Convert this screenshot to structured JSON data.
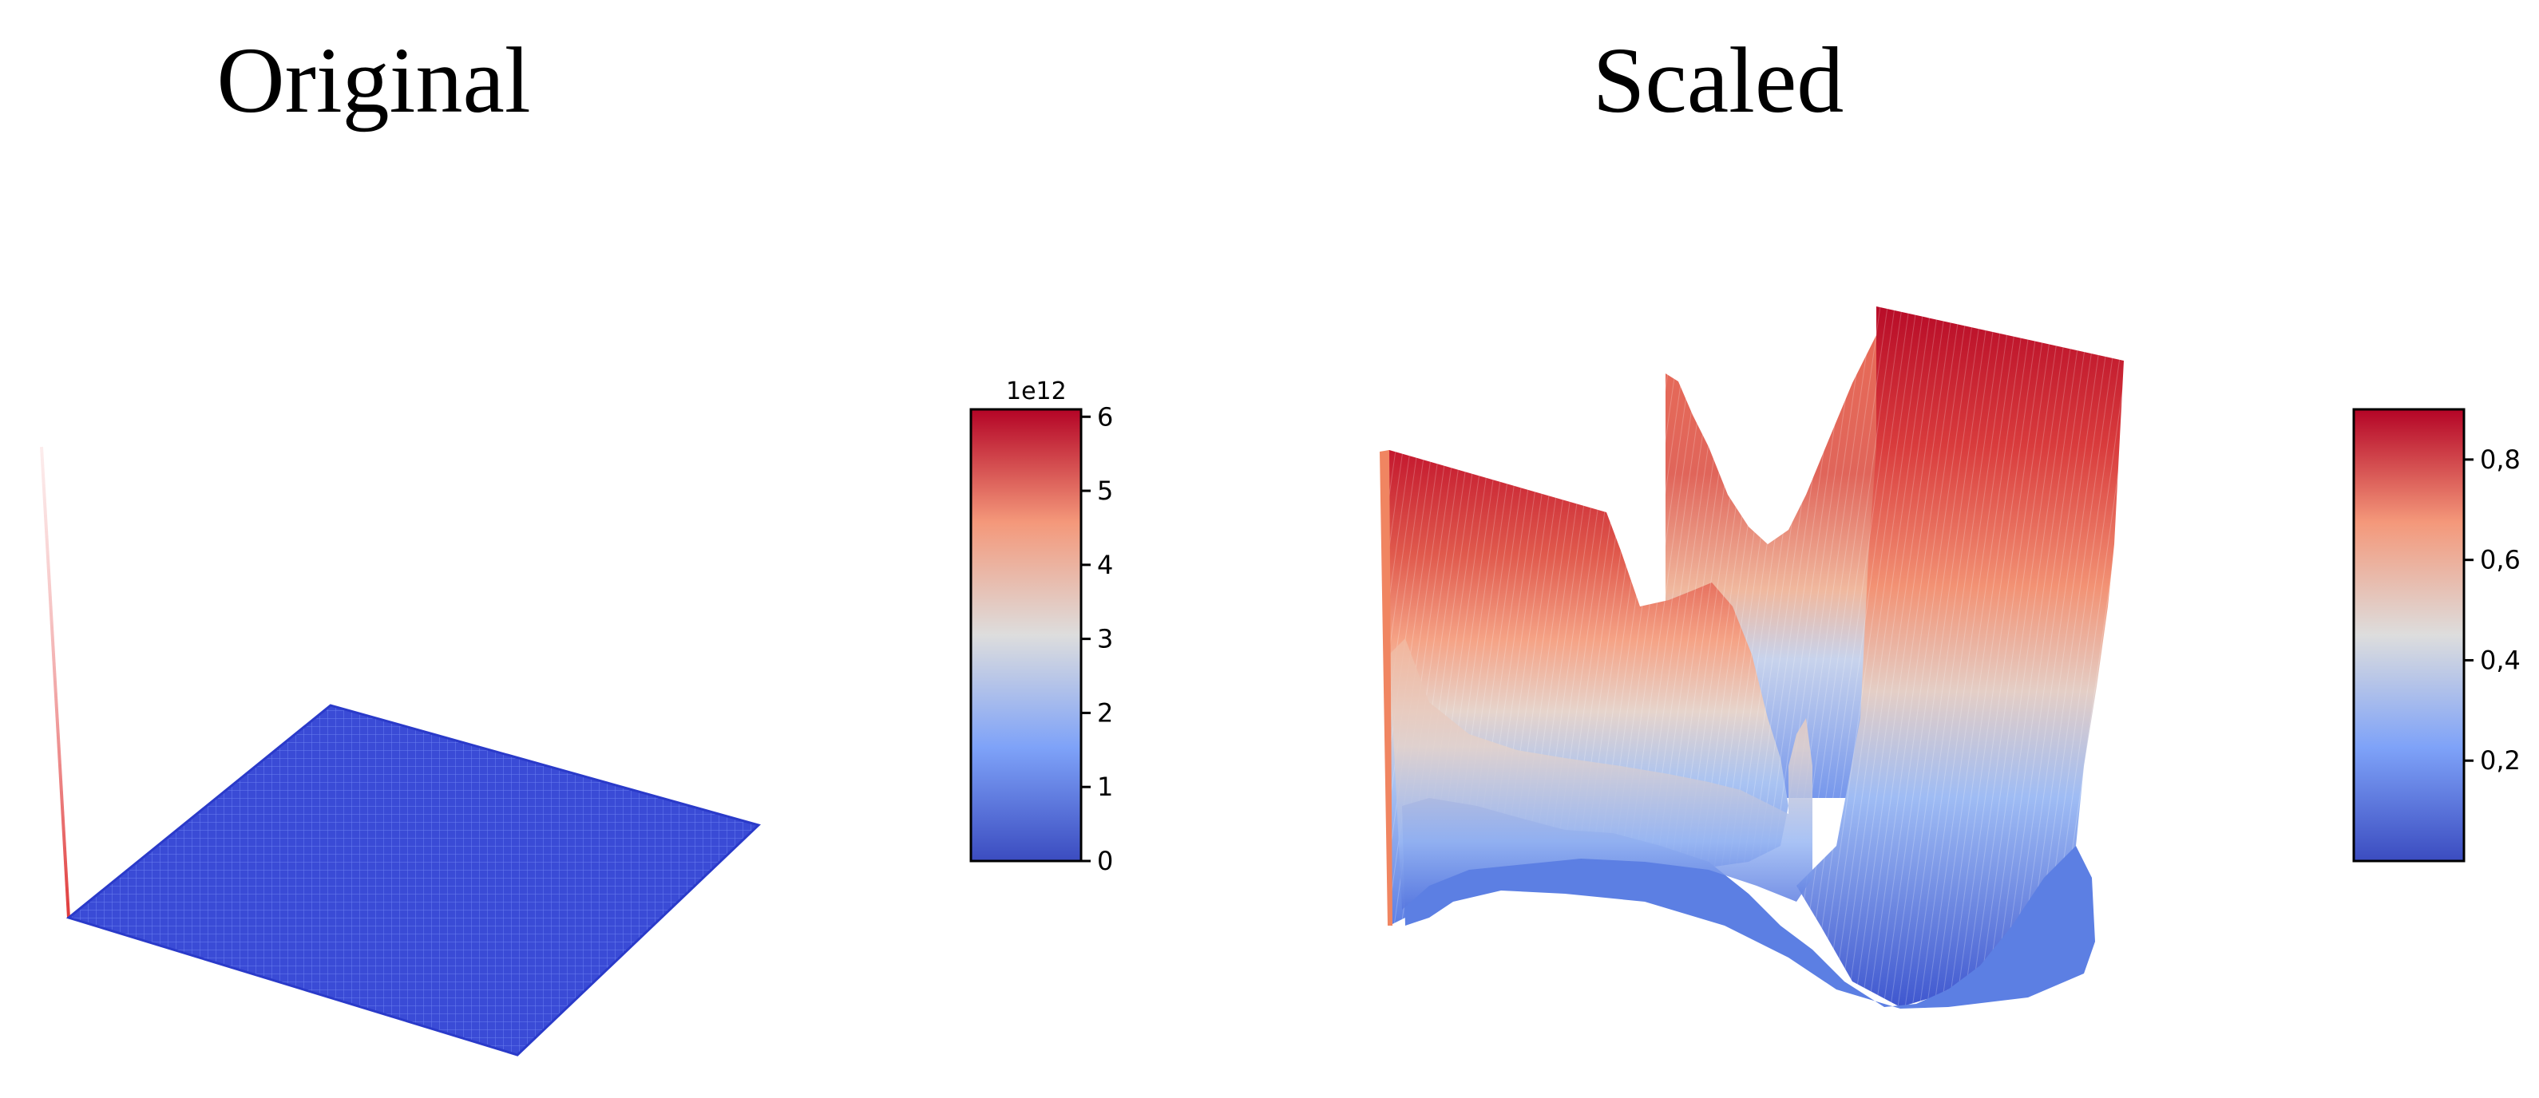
{
  "chart_data": [
    {
      "type": "surface3d",
      "title": "Original",
      "colormap": "coolwarm",
      "colorbar": {
        "min": 0,
        "max": 6.1,
        "ticks": [
          "0",
          "1",
          "2",
          "3",
          "4",
          "5",
          "6"
        ],
        "tick_values": [
          0,
          1,
          2,
          3,
          4,
          5,
          6
        ],
        "offset_text": "1e12"
      },
      "grid": false,
      "axes_visible": false
    },
    {
      "type": "surface3d",
      "title": "Scaled",
      "colormap": "coolwarm",
      "colorbar": {
        "min": 0,
        "max": 0.9,
        "ticks": [
          "0,2",
          "0,4",
          "0,6",
          "0,8"
        ],
        "tick_values": [
          0.2,
          0.4,
          0.6,
          0.8
        ],
        "offset_text": ""
      },
      "grid": false,
      "axes_visible": false
    }
  ],
  "colors": {
    "cold": "#3b4cc0",
    "neutral": "#dddddd",
    "warm": "#b40426"
  }
}
